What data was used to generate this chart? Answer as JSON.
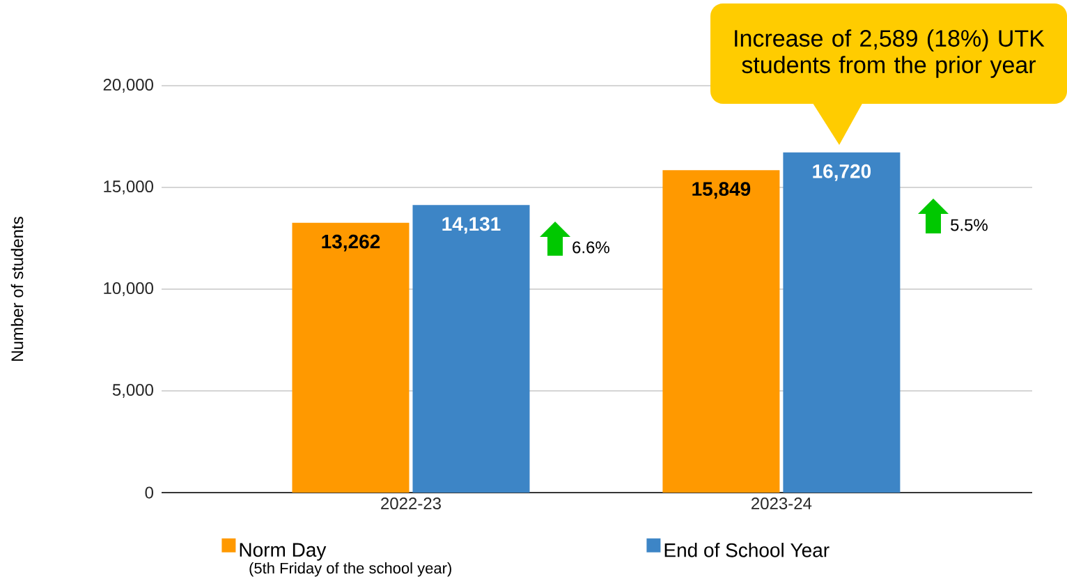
{
  "chart_data": {
    "type": "bar",
    "ylabel": "Number of students",
    "categories": [
      "2022-23",
      "2023-24"
    ],
    "series": [
      {
        "name": "Norm Day",
        "color": "#ff9900",
        "values": [
          13262,
          15849
        ],
        "value_labels": [
          "13,262",
          "15,849"
        ]
      },
      {
        "name": "End of School Year",
        "color": "#3d85c6",
        "values": [
          14131,
          16720
        ],
        "value_labels": [
          "14,131",
          "16,720"
        ]
      }
    ],
    "ylim": [
      0,
      20000
    ],
    "yticks": [
      0,
      {
        "value": 5000,
        "label": "5,000"
      },
      {
        "value": 10000,
        "label": "10,000"
      },
      {
        "value": 15000,
        "label": "15,000"
      },
      {
        "value": 20000,
        "label": "20,000"
      }
    ],
    "grid": "y",
    "legend": "bottom",
    "annotations": [
      "Increase of 2,589 (18%) UTK students from the prior year",
      "(5th Friday of the school year)",
      "6.6%",
      "5.5%"
    ]
  }
}
